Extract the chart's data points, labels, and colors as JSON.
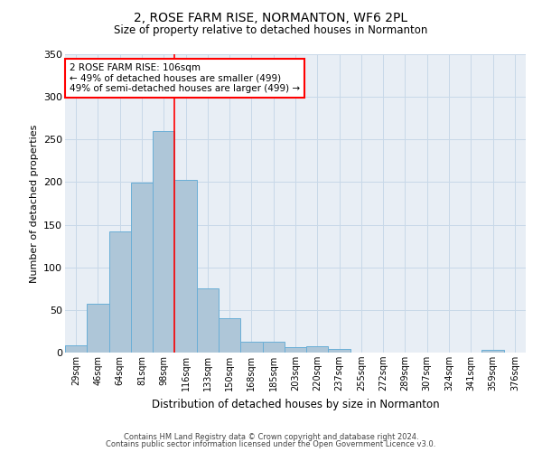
{
  "title": "2, ROSE FARM RISE, NORMANTON, WF6 2PL",
  "subtitle": "Size of property relative to detached houses in Normanton",
  "xlabel": "Distribution of detached houses by size in Normanton",
  "ylabel": "Number of detached properties",
  "categories": [
    "29sqm",
    "46sqm",
    "64sqm",
    "81sqm",
    "98sqm",
    "116sqm",
    "133sqm",
    "150sqm",
    "168sqm",
    "185sqm",
    "203sqm",
    "220sqm",
    "237sqm",
    "255sqm",
    "272sqm",
    "289sqm",
    "307sqm",
    "324sqm",
    "341sqm",
    "359sqm",
    "376sqm"
  ],
  "bar_heights": [
    9,
    57,
    142,
    199,
    260,
    203,
    75,
    40,
    13,
    13,
    6,
    7,
    4,
    0,
    0,
    0,
    0,
    0,
    0,
    3,
    0
  ],
  "bar_color": "#aec6d8",
  "bar_edge_color": "#6aaed6",
  "grid_color": "#c8d8e8",
  "background_color": "#e8eef5",
  "red_line_x": 4.5,
  "annotation_text": "2 ROSE FARM RISE: 106sqm\n← 49% of detached houses are smaller (499)\n49% of semi-detached houses are larger (499) →",
  "annotation_box_color": "white",
  "annotation_box_edge_color": "red",
  "ylim": [
    0,
    350
  ],
  "yticks": [
    0,
    50,
    100,
    150,
    200,
    250,
    300,
    350
  ],
  "footer1": "Contains HM Land Registry data © Crown copyright and database right 2024.",
  "footer2": "Contains public sector information licensed under the Open Government Licence v3.0."
}
